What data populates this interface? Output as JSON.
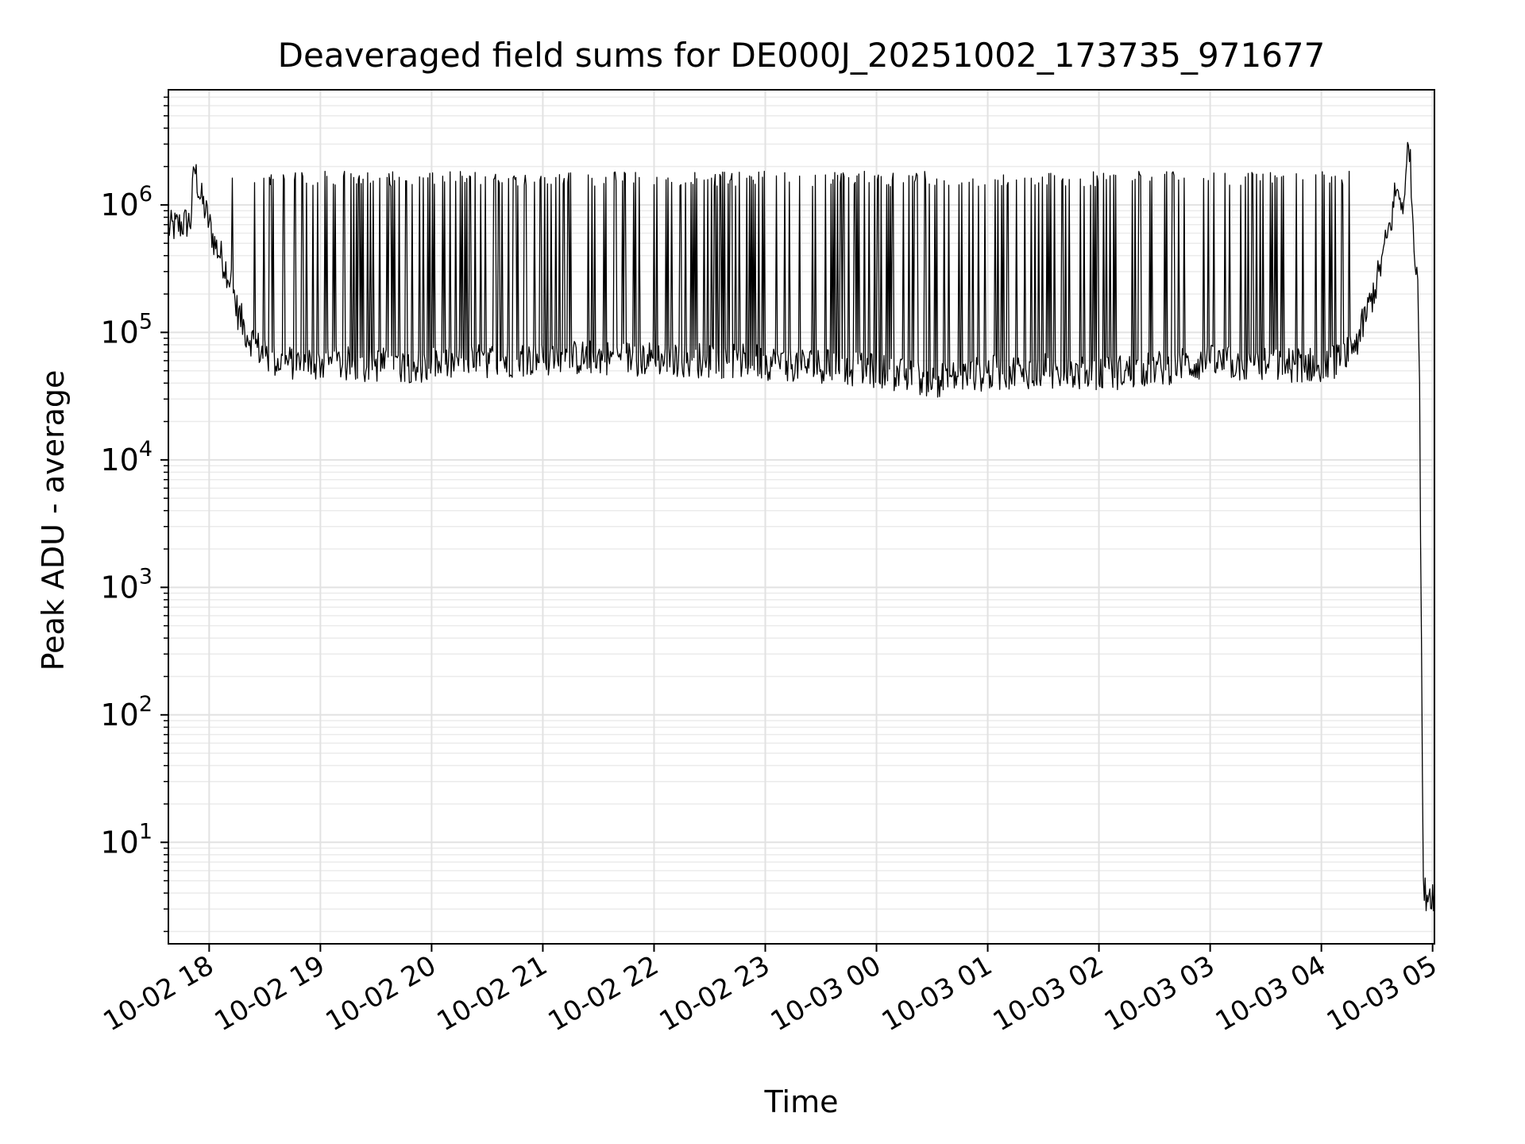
{
  "chart_data": {
    "type": "line",
    "title": "Deaveraged field sums for DE000J_20251002_173735_971677",
    "xlabel": "Time",
    "ylabel": "Peak ADU - average",
    "yscale": "log",
    "ylim": [
      1.6,
      8000000
    ],
    "xlim": [
      "2025-10-02 17:38",
      "2025-10-03 05:01"
    ],
    "grid": true,
    "line_color": "#000000",
    "x_ticks": [
      {
        "value": "2025-10-02 18:00",
        "label": "10-02 18"
      },
      {
        "value": "2025-10-02 19:00",
        "label": "10-02 19"
      },
      {
        "value": "2025-10-02 20:00",
        "label": "10-02 20"
      },
      {
        "value": "2025-10-02 21:00",
        "label": "10-02 21"
      },
      {
        "value": "2025-10-02 22:00",
        "label": "10-02 22"
      },
      {
        "value": "2025-10-02 23:00",
        "label": "10-02 23"
      },
      {
        "value": "2025-10-03 00:00",
        "label": "10-03 00"
      },
      {
        "value": "2025-10-03 01:00",
        "label": "10-03 01"
      },
      {
        "value": "2025-10-03 02:00",
        "label": "10-03 02"
      },
      {
        "value": "2025-10-03 03:00",
        "label": "10-03 03"
      },
      {
        "value": "2025-10-03 04:00",
        "label": "10-03 04"
      },
      {
        "value": "2025-10-03 05:00",
        "label": "10-03 05"
      }
    ],
    "y_ticks": [
      {
        "value": 10,
        "base": "10",
        "exp": "1"
      },
      {
        "value": 100,
        "base": "10",
        "exp": "2"
      },
      {
        "value": 1000,
        "base": "10",
        "exp": "3"
      },
      {
        "value": 10000,
        "base": "10",
        "exp": "4"
      },
      {
        "value": 100000,
        "base": "10",
        "exp": "5"
      },
      {
        "value": 1000000,
        "base": "10",
        "exp": "6"
      }
    ],
    "series": [
      {
        "x": [
          "2025-10-02 17:38",
          "2025-10-02 17:45",
          "2025-10-02 17:50",
          "2025-10-02 17:52",
          "2025-10-02 17:55",
          "2025-10-02 17:58",
          "2025-10-02 18:03",
          "2025-10-02 18:08",
          "2025-10-02 18:12",
          "2025-10-02 18:15",
          "2025-10-02 18:20",
          "2025-10-02 18:25",
          "2025-10-02 18:30",
          "2025-10-02 18:35",
          "2025-10-02 18:40",
          "2025-10-02 19:00",
          "2025-10-02 19:30",
          "2025-10-02 20:00",
          "2025-10-02 20:30",
          "2025-10-02 21:00",
          "2025-10-02 21:30",
          "2025-10-02 22:00",
          "2025-10-02 22:30",
          "2025-10-02 23:00",
          "2025-10-02 23:30",
          "2025-10-03 00:00",
          "2025-10-03 00:30",
          "2025-10-03 01:00",
          "2025-10-03 01:30",
          "2025-10-03 02:00",
          "2025-10-03 02:30",
          "2025-10-03 03:00",
          "2025-10-03 03:30",
          "2025-10-03 04:00",
          "2025-10-03 04:10",
          "2025-10-03 04:20",
          "2025-10-03 04:30",
          "2025-10-03 04:38",
          "2025-10-03 04:40",
          "2025-10-03 04:45",
          "2025-10-03 04:47",
          "2025-10-03 04:50",
          "2025-10-03 04:52",
          "2025-10-03 04:53",
          "2025-10-03 04:55",
          "2025-10-03 05:01"
        ],
        "y": [
          650000,
          700000,
          750000,
          2000000,
          1200000,
          900000,
          500000,
          350000,
          250000,
          150000,
          100000,
          80000,
          65000,
          60000,
          58000,
          57000,
          56000,
          55000,
          60000,
          62000,
          64000,
          62000,
          60000,
          58000,
          55000,
          50000,
          42000,
          48000,
          50000,
          47000,
          52000,
          58000,
          55000,
          56000,
          60000,
          90000,
          250000,
          800000,
          1300000,
          1000000,
          4000000,
          500000,
          300000,
          30000,
          4,
          4
        ],
        "spike_top": 1600000
      }
    ]
  }
}
